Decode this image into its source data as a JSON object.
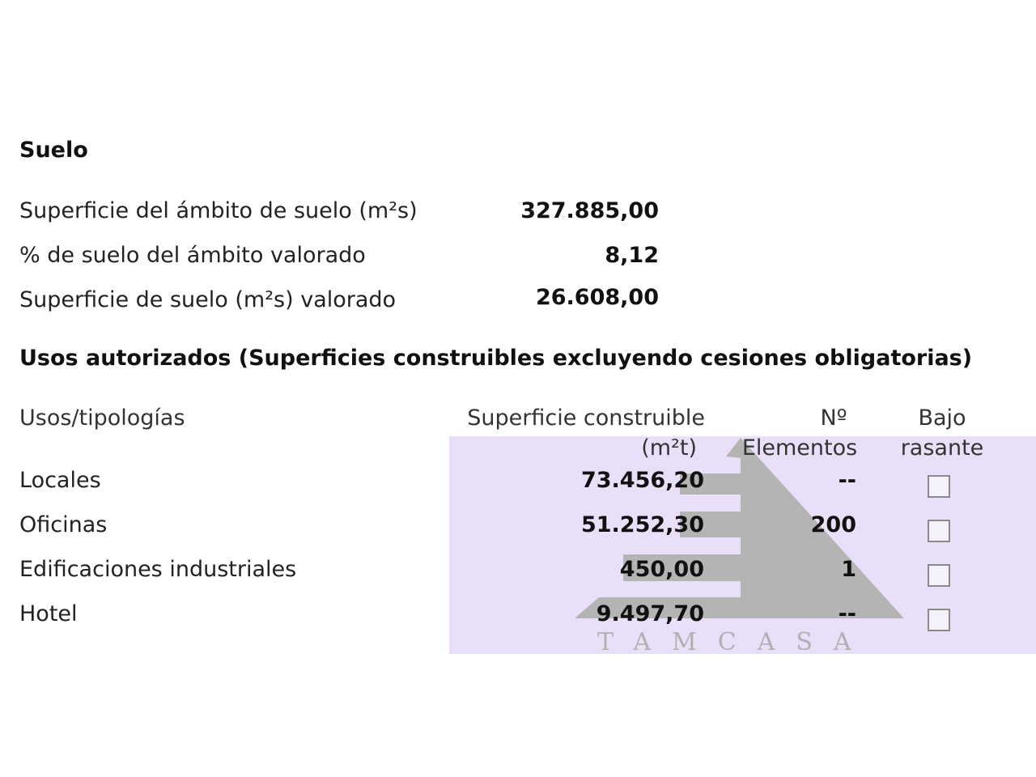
{
  "suelo": {
    "title": "Suelo",
    "rows": [
      {
        "label": "Superficie del ámbito de suelo (m²s)",
        "value": "327.885,00"
      },
      {
        "label": "% de suelo del ámbito valorado",
        "value": "8,12"
      },
      {
        "label": "Superficie de suelo (m²s) valorado",
        "value": "26.608,00"
      }
    ]
  },
  "usos": {
    "title": "Usos autorizados (Superficies construibles excluyendo cesiones obligatorias)",
    "headers": {
      "tipologia": "Usos/tipologías",
      "superficie_line1": "Superficie construible",
      "superficie_line2": "(m²t)",
      "elementos_line1": "Nº",
      "elementos_line2": "Elementos",
      "bajo_line1": "Bajo",
      "bajo_line2": "rasante"
    },
    "rows": [
      {
        "label": "Locales",
        "superficie": "73.456,20",
        "elementos": "--",
        "bajo_rasante": false
      },
      {
        "label": "Oficinas",
        "superficie": "51.252,30",
        "elementos": "200",
        "bajo_rasante": false
      },
      {
        "label": "Edificaciones industriales",
        "superficie": "450,00",
        "elementos": "1",
        "bajo_rasante": false
      },
      {
        "label": "Hotel",
        "superficie": "9.497,70",
        "elementos": "--",
        "bajo_rasante": false
      }
    ]
  },
  "watermark": {
    "text": "TAMCASA",
    "colors": {
      "background": "#eadff9",
      "logo": "#b4b4b4"
    }
  }
}
